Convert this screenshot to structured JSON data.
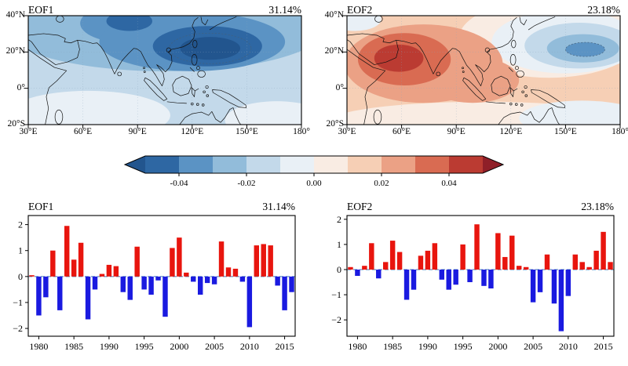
{
  "map_row": {
    "eof1": {
      "label": "EOF1",
      "variance": "31.14%"
    },
    "eof2": {
      "label": "EOF2",
      "variance": "23.18%"
    },
    "x_tick_labels": [
      "30°E",
      "60°E",
      "90°E",
      "120°E",
      "150°E",
      "180°"
    ],
    "y_tick_labels": [
      "40°N",
      "20°N",
      "0°",
      "20°S"
    ]
  },
  "colorbar": {
    "tick_labels": [
      "-0.04",
      "-0.02",
      "0.00",
      "0.02",
      "0.04"
    ],
    "segment_colors": [
      "#2e67a3",
      "#5b93c4",
      "#92bcda",
      "#c3d9ea",
      "#e9f0f6",
      "#f9ece3",
      "#f6cfb5",
      "#eba185",
      "#d96b52",
      "#bb3b32"
    ],
    "arrow_low_color": "#22558e",
    "arrow_high_color": "#8f1f28"
  },
  "pc_row": {
    "eof1": {
      "label": "EOF1",
      "variance": "31.14%"
    },
    "eof2": {
      "label": "EOF2",
      "variance": "23.18%"
    },
    "bar_positive_color": "#e8150e",
    "bar_negative_color": "#1a1ae0",
    "zero_line_color": "#3d7ab5"
  },
  "chart_data": [
    {
      "type": "heatmap",
      "subtype": "filled-contour-map",
      "title": "EOF1",
      "variance_explained": "31.14%",
      "lon_range": [
        30,
        180
      ],
      "lat_range": [
        -20,
        40
      ],
      "x_ticks": [
        "30°E",
        "60°E",
        "90°E",
        "120°E",
        "150°E",
        "180°"
      ],
      "y_ticks": [
        "40°N",
        "20°N",
        "0°",
        "20°S"
      ],
      "value_range": [
        -0.05,
        0.05
      ],
      "pattern_summary": "Basin-wide negative (blue) loadings; strongest center about -0.04 to -0.05 over the western North Pacific near 110-150E, 10-30N, secondary negative center near 75-95E, 30-40N; weakest values (about -0.01) south of the equator."
    },
    {
      "type": "heatmap",
      "subtype": "filled-contour-map",
      "title": "EOF2",
      "variance_explained": "23.18%",
      "lon_range": [
        30,
        180
      ],
      "lat_range": [
        -20,
        40
      ],
      "x_ticks": [
        "30°E",
        "60°E",
        "90°E",
        "120°E",
        "150°E",
        "180°"
      ],
      "y_ticks": [
        "40°N",
        "20°N",
        "0°",
        "20°S"
      ],
      "value_range": [
        -0.05,
        0.05
      ],
      "pattern_summary": "Dipole pattern: positive (red) loadings over the Indian Ocean peaking about +0.04 to +0.05 near 50-75E, 5-25N; negative (blue) loadings over the western North Pacific east of about 120E, peaking about -0.03 near 140-165E, 15-25N."
    },
    {
      "type": "bar",
      "title": "EOF1",
      "variance_explained": "31.14%",
      "x": [
        1979,
        1980,
        1981,
        1982,
        1983,
        1984,
        1985,
        1986,
        1987,
        1988,
        1989,
        1990,
        1991,
        1992,
        1993,
        1994,
        1995,
        1996,
        1997,
        1998,
        1999,
        2000,
        2001,
        2002,
        2003,
        2004,
        2005,
        2006,
        2007,
        2008,
        2009,
        2010,
        2011,
        2012,
        2013,
        2014,
        2015,
        2016
      ],
      "values": [
        0.05,
        -1.5,
        -0.8,
        1.0,
        -1.3,
        1.95,
        0.65,
        1.3,
        -1.65,
        -0.5,
        0.1,
        0.45,
        0.4,
        -0.6,
        -0.9,
        1.15,
        -0.5,
        -0.7,
        -0.15,
        -1.55,
        1.1,
        1.5,
        0.15,
        -0.2,
        -0.7,
        -0.25,
        -0.3,
        1.35,
        0.35,
        0.3,
        -0.2,
        -1.95,
        1.2,
        1.25,
        1.2,
        -0.35,
        -1.3,
        -0.6
      ],
      "ylim": [
        -2.3,
        2.35
      ],
      "yticks": [
        -2,
        -1,
        0,
        1,
        2
      ],
      "xticks": [
        1980,
        1985,
        1990,
        1995,
        2000,
        2005,
        2010,
        2015
      ],
      "zero_line": "dashed"
    },
    {
      "type": "bar",
      "title": "EOF2",
      "variance_explained": "23.18%",
      "x": [
        1979,
        1980,
        1981,
        1982,
        1983,
        1984,
        1985,
        1986,
        1987,
        1988,
        1989,
        1990,
        1991,
        1992,
        1993,
        1994,
        1995,
        1996,
        1997,
        1998,
        1999,
        2000,
        2001,
        2002,
        2003,
        2004,
        2005,
        2006,
        2007,
        2008,
        2009,
        2010,
        2011,
        2012,
        2013,
        2014,
        2015,
        2016
      ],
      "values": [
        0.1,
        -0.25,
        0.15,
        1.05,
        -0.35,
        0.3,
        1.15,
        0.7,
        -1.2,
        -0.8,
        0.55,
        0.75,
        1.05,
        -0.4,
        -0.8,
        -0.6,
        1.0,
        -0.5,
        1.8,
        -0.65,
        -0.75,
        1.45,
        0.5,
        1.35,
        0.15,
        0.1,
        -1.3,
        -0.9,
        0.6,
        -1.35,
        -2.45,
        -1.05,
        0.6,
        0.3,
        0.1,
        0.75,
        1.5,
        0.3
      ],
      "ylim": [
        -2.65,
        2.15
      ],
      "yticks": [
        -2,
        -1,
        0,
        1,
        2
      ],
      "xticks": [
        1980,
        1985,
        1990,
        1995,
        2000,
        2005,
        2010,
        2015
      ],
      "zero_line": "dashed"
    }
  ]
}
